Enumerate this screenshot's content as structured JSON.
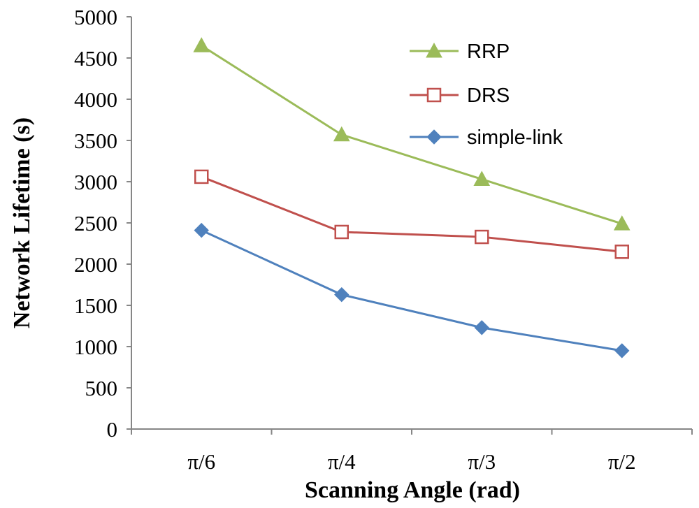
{
  "chart_data": {
    "type": "line",
    "title": "",
    "xlabel": "Scanning Angle (rad)",
    "ylabel": "Network Lifetime (s)",
    "categories": [
      "π/6",
      "π/4",
      "π/3",
      "π/2"
    ],
    "ylim": [
      0,
      5000
    ],
    "yticks": [
      0,
      500,
      1000,
      1500,
      2000,
      2500,
      3000,
      3500,
      4000,
      4500,
      5000
    ],
    "grid": false,
    "legend_position": "top-right",
    "series": [
      {
        "name": "RRP",
        "color": "#9bbb59",
        "marker": "triangle",
        "values": [
          4650,
          3570,
          3030,
          2490
        ]
      },
      {
        "name": "DRS",
        "color": "#c0504d",
        "marker": "open-square",
        "values": [
          3060,
          2390,
          2330,
          2150
        ]
      },
      {
        "name": "simple-link",
        "color": "#4f81bd",
        "marker": "diamond",
        "values": [
          2410,
          1630,
          1230,
          950
        ]
      }
    ]
  }
}
